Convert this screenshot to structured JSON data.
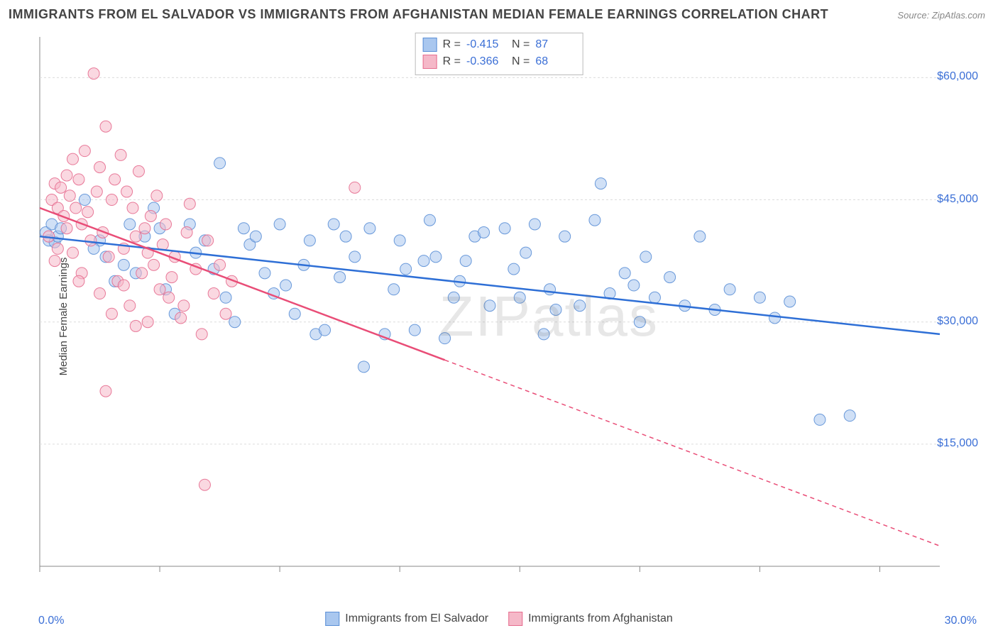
{
  "title": "IMMIGRANTS FROM EL SALVADOR VS IMMIGRANTS FROM AFGHANISTAN MEDIAN FEMALE EARNINGS CORRELATION CHART",
  "source_label": "Source:",
  "source_value": "ZipAtlas.com",
  "ylabel": "Median Female Earnings",
  "watermark": "ZIPatlas",
  "chart": {
    "type": "scatter-with-trend",
    "xlim": [
      0,
      30
    ],
    "ylim": [
      0,
      65000
    ],
    "x_tick_positions": [
      0,
      4,
      8,
      12,
      16,
      20,
      24,
      28
    ],
    "y_gridlines": [
      15000,
      30000,
      45000,
      60000
    ],
    "y_tick_labels": [
      "$15,000",
      "$30,000",
      "$45,000",
      "$60,000"
    ],
    "xmin_label": "0.0%",
    "xmax_label": "30.0%",
    "background_color": "#ffffff",
    "grid_color": "#dcdcdc",
    "axis_color": "#888888",
    "marker_radius": 8,
    "marker_opacity": 0.55,
    "marker_stroke_opacity": 0.9,
    "trend_line_width": 2.5,
    "series": [
      {
        "id": "el_salvador",
        "label": "Immigrants from El Salvador",
        "color_fill": "#a9c7ef",
        "color_stroke": "#5b8fd6",
        "trend_color": "#2e6fd6",
        "trend_start": [
          0,
          40500
        ],
        "trend_end": [
          30,
          28500
        ],
        "trend_solid_until_x": 30,
        "R": "-0.415",
        "N": "87",
        "points": [
          [
            0.2,
            41000
          ],
          [
            0.3,
            40000
          ],
          [
            0.4,
            42000
          ],
          [
            0.5,
            39800
          ],
          [
            0.6,
            40500
          ],
          [
            0.7,
            41500
          ],
          [
            1.5,
            45000
          ],
          [
            2.0,
            40000
          ],
          [
            2.2,
            38000
          ],
          [
            2.5,
            35000
          ],
          [
            3.0,
            42000
          ],
          [
            3.2,
            36000
          ],
          [
            3.5,
            40500
          ],
          [
            4.0,
            41500
          ],
          [
            4.2,
            34000
          ],
          [
            4.5,
            31000
          ],
          [
            5.0,
            42000
          ],
          [
            5.2,
            38500
          ],
          [
            5.5,
            40000
          ],
          [
            6.0,
            49500
          ],
          [
            6.2,
            33000
          ],
          [
            6.5,
            30000
          ],
          [
            7.0,
            39500
          ],
          [
            7.2,
            40500
          ],
          [
            7.5,
            36000
          ],
          [
            8.0,
            42000
          ],
          [
            8.2,
            34500
          ],
          [
            8.5,
            31000
          ],
          [
            9.0,
            40000
          ],
          [
            9.2,
            28500
          ],
          [
            9.5,
            29000
          ],
          [
            10.0,
            35500
          ],
          [
            10.2,
            40500
          ],
          [
            10.5,
            38000
          ],
          [
            10.8,
            24500
          ],
          [
            11.0,
            41500
          ],
          [
            11.5,
            28500
          ],
          [
            12.0,
            40000
          ],
          [
            12.2,
            36500
          ],
          [
            12.5,
            29000
          ],
          [
            13.0,
            42500
          ],
          [
            13.2,
            38000
          ],
          [
            13.5,
            28000
          ],
          [
            14.0,
            35000
          ],
          [
            14.2,
            37500
          ],
          [
            14.5,
            40500
          ],
          [
            15.0,
            32000
          ],
          [
            15.5,
            41500
          ],
          [
            16.0,
            33000
          ],
          [
            16.2,
            38500
          ],
          [
            16.5,
            42000
          ],
          [
            17.0,
            34000
          ],
          [
            17.2,
            31500
          ],
          [
            17.5,
            40500
          ],
          [
            18.0,
            32000
          ],
          [
            18.5,
            42500
          ],
          [
            18.7,
            47000
          ],
          [
            19.0,
            33500
          ],
          [
            19.5,
            36000
          ],
          [
            20.0,
            30000
          ],
          [
            20.2,
            38000
          ],
          [
            20.5,
            33000
          ],
          [
            21.0,
            35500
          ],
          [
            21.5,
            32000
          ],
          [
            22.0,
            40500
          ],
          [
            22.5,
            31500
          ],
          [
            23.0,
            34000
          ],
          [
            24.0,
            33000
          ],
          [
            24.5,
            30500
          ],
          [
            25.0,
            32500
          ],
          [
            26.0,
            18000
          ],
          [
            27.0,
            18500
          ],
          [
            5.8,
            36500
          ],
          [
            6.8,
            41500
          ],
          [
            8.8,
            37000
          ],
          [
            11.8,
            34000
          ],
          [
            13.8,
            33000
          ],
          [
            15.8,
            36500
          ],
          [
            19.8,
            34500
          ],
          [
            9.8,
            42000
          ],
          [
            12.8,
            37500
          ],
          [
            16.8,
            28500
          ],
          [
            7.8,
            33500
          ],
          [
            14.8,
            41000
          ],
          [
            3.8,
            44000
          ],
          [
            2.8,
            37000
          ],
          [
            1.8,
            39000
          ]
        ]
      },
      {
        "id": "afghanistan",
        "label": "Immigrants from Afghanistan",
        "color_fill": "#f5b8c8",
        "color_stroke": "#e66d8f",
        "trend_color": "#e94d77",
        "trend_start": [
          0,
          44000
        ],
        "trend_end": [
          30,
          2500
        ],
        "trend_solid_until_x": 13.5,
        "R": "-0.366",
        "N": "68",
        "points": [
          [
            0.3,
            40500
          ],
          [
            0.4,
            45000
          ],
          [
            0.5,
            47000
          ],
          [
            0.6,
            44000
          ],
          [
            0.7,
            46500
          ],
          [
            0.8,
            43000
          ],
          [
            0.9,
            48000
          ],
          [
            1.0,
            45500
          ],
          [
            1.1,
            50000
          ],
          [
            1.2,
            44000
          ],
          [
            1.3,
            47500
          ],
          [
            1.4,
            42000
          ],
          [
            1.5,
            51000
          ],
          [
            1.6,
            43500
          ],
          [
            1.7,
            40000
          ],
          [
            1.8,
            60500
          ],
          [
            1.9,
            46000
          ],
          [
            2.0,
            49000
          ],
          [
            2.1,
            41000
          ],
          [
            2.2,
            54000
          ],
          [
            2.3,
            38000
          ],
          [
            2.4,
            45000
          ],
          [
            2.5,
            47500
          ],
          [
            2.6,
            35000
          ],
          [
            2.7,
            50500
          ],
          [
            2.8,
            39000
          ],
          [
            2.9,
            46000
          ],
          [
            3.0,
            32000
          ],
          [
            3.1,
            44000
          ],
          [
            3.2,
            40500
          ],
          [
            3.3,
            48500
          ],
          [
            3.4,
            36000
          ],
          [
            3.5,
            41500
          ],
          [
            3.6,
            30000
          ],
          [
            3.7,
            43000
          ],
          [
            3.8,
            37000
          ],
          [
            3.9,
            45500
          ],
          [
            4.0,
            34000
          ],
          [
            4.1,
            39500
          ],
          [
            4.2,
            42000
          ],
          [
            4.3,
            33000
          ],
          [
            4.5,
            38000
          ],
          [
            4.7,
            30500
          ],
          [
            4.9,
            41000
          ],
          [
            5.0,
            44500
          ],
          [
            5.2,
            36500
          ],
          [
            5.4,
            28500
          ],
          [
            5.6,
            40000
          ],
          [
            5.8,
            33500
          ],
          [
            6.0,
            37000
          ],
          [
            6.2,
            31000
          ],
          [
            6.4,
            35000
          ],
          [
            1.4,
            36000
          ],
          [
            2.2,
            21500
          ],
          [
            5.5,
            10000
          ],
          [
            10.5,
            46500
          ],
          [
            0.5,
            37500
          ],
          [
            0.6,
            39000
          ],
          [
            0.9,
            41500
          ],
          [
            1.1,
            38500
          ],
          [
            1.3,
            35000
          ],
          [
            2.0,
            33500
          ],
          [
            2.4,
            31000
          ],
          [
            2.8,
            34500
          ],
          [
            3.2,
            29500
          ],
          [
            3.6,
            38500
          ],
          [
            4.4,
            35500
          ],
          [
            4.8,
            32000
          ]
        ]
      }
    ]
  },
  "top_legend": {
    "R_label": "R  =",
    "N_label": "N  ="
  }
}
